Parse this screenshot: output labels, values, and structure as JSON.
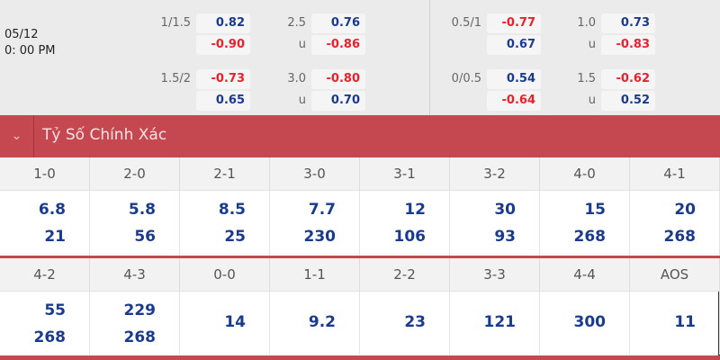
{
  "match": {
    "date": "05/12",
    "time": "0: 00 PM"
  },
  "odds_left": [
    {
      "hdp": "1/1.5",
      "hdp_vals": [
        {
          "v": "0.82",
          "c": "blue"
        },
        {
          "v": "-0.90",
          "c": "red"
        }
      ],
      "ou": "2.5",
      "ou_u": "u",
      "ou_vals": [
        {
          "v": "0.76",
          "c": "blue"
        },
        {
          "v": "-0.86",
          "c": "red"
        }
      ]
    },
    {
      "hdp": "1.5/2",
      "hdp_vals": [
        {
          "v": "-0.73",
          "c": "red"
        },
        {
          "v": "0.65",
          "c": "blue"
        }
      ],
      "ou": "3.0",
      "ou_u": "u",
      "ou_vals": [
        {
          "v": "-0.80",
          "c": "red"
        },
        {
          "v": "0.70",
          "c": "blue"
        }
      ]
    }
  ],
  "odds_right": [
    {
      "hdp": "0.5/1",
      "hdp_vals": [
        {
          "v": "-0.77",
          "c": "red"
        },
        {
          "v": "0.67",
          "c": "blue"
        }
      ],
      "ou": "1.0",
      "ou_u": "u",
      "ou_vals": [
        {
          "v": "0.73",
          "c": "blue"
        },
        {
          "v": "-0.83",
          "c": "red"
        }
      ]
    },
    {
      "hdp": "0/0.5",
      "hdp_vals": [
        {
          "v": "0.54",
          "c": "blue"
        },
        {
          "v": "-0.64",
          "c": "red"
        }
      ],
      "ou": "1.5",
      "ou_u": "u",
      "ou_vals": [
        {
          "v": "-0.62",
          "c": "red"
        },
        {
          "v": "0.52",
          "c": "blue"
        }
      ]
    }
  ],
  "section": {
    "title": "Tỷ Số Chính Xác",
    "icon": "chevron-down-icon",
    "accent": "#c5474f"
  },
  "scores_row1": [
    {
      "score": "1-0",
      "vals": [
        "6.8",
        "21"
      ]
    },
    {
      "score": "2-0",
      "vals": [
        "5.8",
        "56"
      ]
    },
    {
      "score": "2-1",
      "vals": [
        "8.5",
        "25"
      ]
    },
    {
      "score": "3-0",
      "vals": [
        "7.7",
        "230"
      ]
    },
    {
      "score": "3-1",
      "vals": [
        "12",
        "106"
      ]
    },
    {
      "score": "3-2",
      "vals": [
        "30",
        "93"
      ]
    },
    {
      "score": "4-0",
      "vals": [
        "15",
        "268"
      ]
    },
    {
      "score": "4-1",
      "vals": [
        "20",
        "268"
      ]
    }
  ],
  "scores_row2": [
    {
      "score": "4-2",
      "vals": [
        "55",
        "268"
      ]
    },
    {
      "score": "4-3",
      "vals": [
        "229",
        "268"
      ]
    },
    {
      "score": "0-0",
      "vals": [
        "14"
      ]
    },
    {
      "score": "1-1",
      "vals": [
        "9.2"
      ]
    },
    {
      "score": "2-2",
      "vals": [
        "23"
      ]
    },
    {
      "score": "3-3",
      "vals": [
        "121"
      ]
    },
    {
      "score": "4-4",
      "vals": [
        "300"
      ]
    },
    {
      "score": "AOS",
      "vals": [
        "11"
      ]
    }
  ]
}
